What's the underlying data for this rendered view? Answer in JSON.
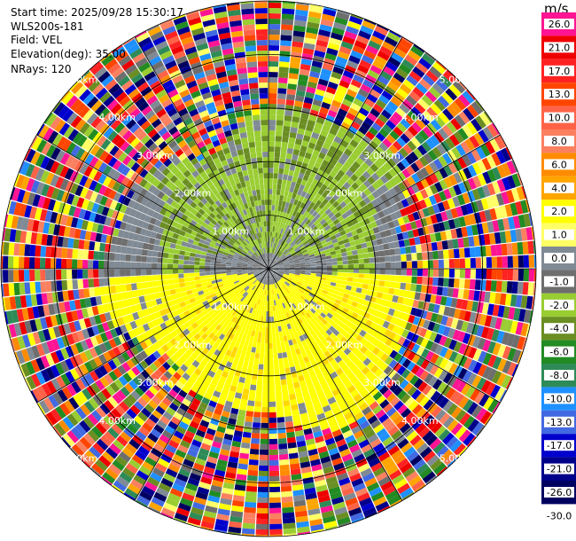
{
  "info": {
    "start_time": "Start time: 2025/09/28 15:30:17",
    "instrument": "WLS200s-181",
    "field": "Field: VEL",
    "elevation": "Elevation(deg): 35.00",
    "nrays": "NRays: 120"
  },
  "range_rings": {
    "labels": [
      "1.00km",
      "2.00km",
      "3.00km",
      "4.00km",
      "5.00km"
    ]
  },
  "colorbar": {
    "unit": "m/s",
    "bins": [
      {
        "label": "26.0",
        "color": "#ff1493"
      },
      {
        "label": "21.0",
        "color": "#ee0000"
      },
      {
        "label": "17.0",
        "color": "#ff2222"
      },
      {
        "label": "13.0",
        "color": "#ff4500"
      },
      {
        "label": "10.0",
        "color": "#ff6347"
      },
      {
        "label": "8.0",
        "color": "#fa8060"
      },
      {
        "label": "6.0",
        "color": "#ff8c00"
      },
      {
        "label": "4.0",
        "color": "#ffa500"
      },
      {
        "label": "2.0",
        "color": "#ffff00"
      },
      {
        "label": "1.0",
        "color": "#ffff66"
      },
      {
        "label": "0.0",
        "color": "#808a94"
      },
      {
        "label": "-1.0",
        "color": "#6e6e6e"
      },
      {
        "label": "-2.0",
        "color": "#9acd32"
      },
      {
        "label": "-4.0",
        "color": "#6b8e23"
      },
      {
        "label": "-6.0",
        "color": "#228b22"
      },
      {
        "label": "-8.0",
        "color": "#2e8b57"
      },
      {
        "label": "-10.0",
        "color": "#1e90ff"
      },
      {
        "label": "-13.0",
        "color": "#4169e1"
      },
      {
        "label": "-17.0",
        "color": "#0000cd"
      },
      {
        "label": "-21.0",
        "color": "#00008b"
      },
      {
        "label": "-26.0",
        "color": "#000060"
      },
      {
        "label": "-30.0",
        "color": ""
      }
    ]
  },
  "field_colors": {
    "negative_light": "#9acd32",
    "negative_dark": "#6b8e23",
    "near_zero": "#808a94",
    "near_zero_dark": "#6e6e6e",
    "positive": "#ffff00",
    "positive_dark": "#ffd700"
  }
}
